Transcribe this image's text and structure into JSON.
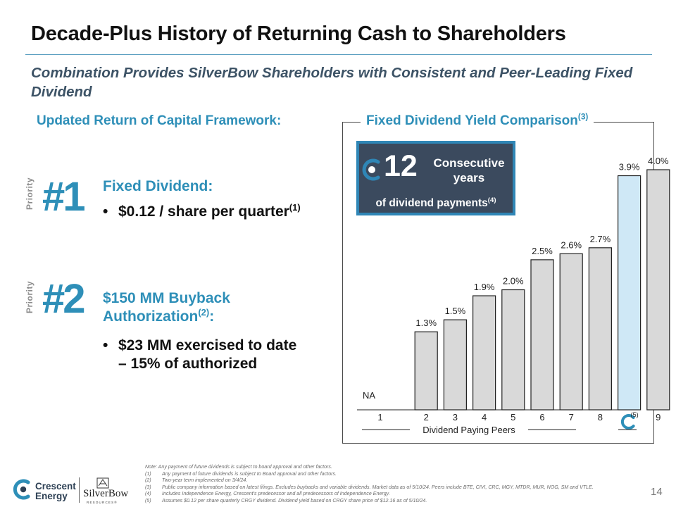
{
  "slide": {
    "title": "Decade-Plus History of Returning Cash to Shareholders",
    "subtitle": "Combination Provides SilverBow Shareholders with Consistent and Peer-Leading Fixed Dividend",
    "page_number": "14"
  },
  "framework": {
    "header": "Updated Return of Capital Framework:",
    "priority_label": "Priority",
    "items": [
      {
        "rank": "#1",
        "title": "Fixed Dividend:",
        "title_sup": "",
        "bullet": "$0.12 / share per quarter",
        "bullet_sup": "(1)"
      },
      {
        "rank": "#2",
        "title_line1": "$150 MM Buyback",
        "title_line2": "Authorization",
        "title_sup": "(2)",
        "title_tail": ":",
        "bullet_line1": "$23 MM exercised to date",
        "bullet_line2": "– 15% of authorized"
      }
    ]
  },
  "comparison": {
    "title": "Fixed Dividend Yield Comparison",
    "title_sup": "(3)",
    "badge": {
      "number": "12",
      "label_line1": "Consecutive",
      "label_line2": "years",
      "sub": "of dividend payments",
      "sub_sup": "(4)"
    },
    "axis_label": "Dividend Paying Peers"
  },
  "chart_data": {
    "type": "bar",
    "categories": [
      "1",
      "2",
      "3",
      "4",
      "5",
      "6",
      "7",
      "8",
      "",
      "9"
    ],
    "values": [
      null,
      1.3,
      1.5,
      1.9,
      2.0,
      2.5,
      2.6,
      2.7,
      3.9,
      4.0
    ],
    "data_labels": [
      "NA",
      "1.3%",
      "1.5%",
      "1.9%",
      "2.0%",
      "2.5%",
      "2.6%",
      "2.7%",
      "3.9%",
      "4.0%"
    ],
    "highlight_index": 8,
    "highlight_note": "(5)",
    "ylim": [
      0,
      4.0
    ],
    "grid": false,
    "colors": {
      "bar": "#d9d9d9",
      "bar_stroke": "#222222",
      "highlight": "#cfe8f6",
      "brand": "#2e8fb8"
    }
  },
  "notes": [
    {
      "key": "",
      "text": "Note: Any payment of future dividends is subject to board approval and other factors."
    },
    {
      "key": "(1)",
      "text": "Any payment of future dividends is subject to Board approval and other factors."
    },
    {
      "key": "(2)",
      "text": "Two-year term implemented on 3/4/24."
    },
    {
      "key": "(3)",
      "text": "Public company information based on latest filings. Excludes buybacks and variable dividends. Market data as of 5/10/24. Peers include BTE, CIVI, CRC, MGY, MTDR, MUR, NOG, SM and VTLE."
    },
    {
      "key": "(4)",
      "text": "Includes Independence Energy, Crescent's predecessor and all predecessors of Independence Energy."
    },
    {
      "key": "(5)",
      "text": "Assumes $0.12 per share quarterly CRGY dividend. Dividend yield based on CRGY share price of $12.16 as of 5/10/24."
    }
  ],
  "logos": {
    "crescent_line1": "Crescent",
    "crescent_line2": "Energy",
    "silverbow": "SilverBow",
    "silverbow_sub": "RESOURCES®"
  }
}
